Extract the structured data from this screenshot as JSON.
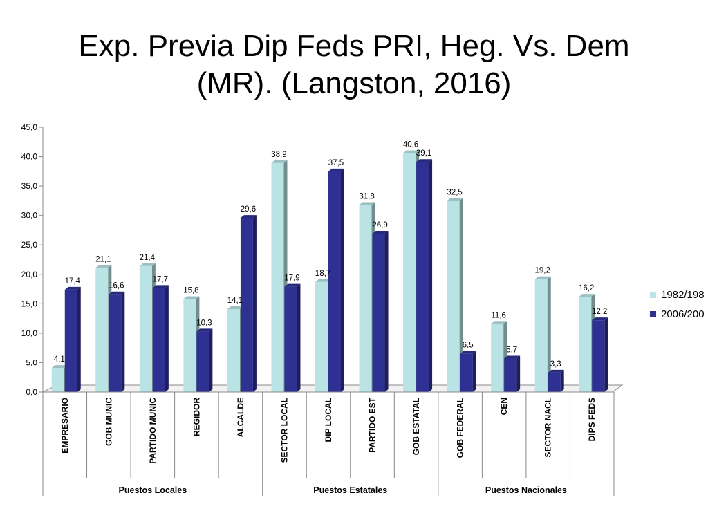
{
  "title": {
    "line1": "Exp. Previa Dip Feds PRI, Heg. Vs. Dem",
    "line2": "(MR). (Langston, 2016)"
  },
  "chart_data": {
    "type": "bar",
    "title": "Exp. Previa Dip Feds PRI, Heg. Vs. Dem (MR). (Langston, 2016)",
    "categories": [
      "EMPRESARIO",
      "GOB MUNIC",
      "PARTIDO MUNIC",
      "REGIDOR",
      "ALCALDE",
      "SECTOR LOCAL",
      "DIP LOCAL",
      "PARTIDO EST",
      "GOB ESTATAL",
      "GOB FEDERAL",
      "CEN",
      "SECTOR NACL",
      "DIPS FEDS"
    ],
    "groups": [
      {
        "label": "Puestos Locales",
        "count": 5
      },
      {
        "label": "Puestos Estatales",
        "count": 4
      },
      {
        "label": "Puestos Nacionales",
        "count": 4
      }
    ],
    "series": [
      {
        "name": "1982/198",
        "color": "#b9e3e4",
        "values": [
          4.1,
          21.1,
          21.4,
          15.8,
          14.1,
          38.9,
          18.7,
          31.8,
          40.6,
          32.5,
          11.6,
          19.2,
          16.2
        ],
        "labels": [
          "4,1",
          "21,1",
          "21,4",
          "15,8",
          "14,1",
          "38,9",
          "18,7",
          "31,8",
          "40,6",
          "32,5",
          "11,6",
          "19,2",
          "16,2"
        ]
      },
      {
        "name": "2006/200",
        "color": "#2e3192",
        "values": [
          17.4,
          16.6,
          17.7,
          10.3,
          29.6,
          17.9,
          37.5,
          26.9,
          39.1,
          6.5,
          5.7,
          3.3,
          12.2
        ],
        "labels": [
          "17,4",
          "16,6",
          "17,7",
          "10,3",
          "29,6",
          "17,9",
          "37,5",
          "26,9",
          "39,1",
          "6,5",
          "5,7",
          "3,3",
          "12,2"
        ]
      }
    ],
    "ylim": [
      0,
      45
    ],
    "yticks": [
      "0,0",
      "5,0",
      "10,0",
      "15,0",
      "20,0",
      "25,0",
      "30,0",
      "35,0",
      "40,0",
      "45,0"
    ],
    "xlabel": "",
    "ylabel": "",
    "grid": false,
    "legend": "right",
    "style": "3d-column"
  }
}
